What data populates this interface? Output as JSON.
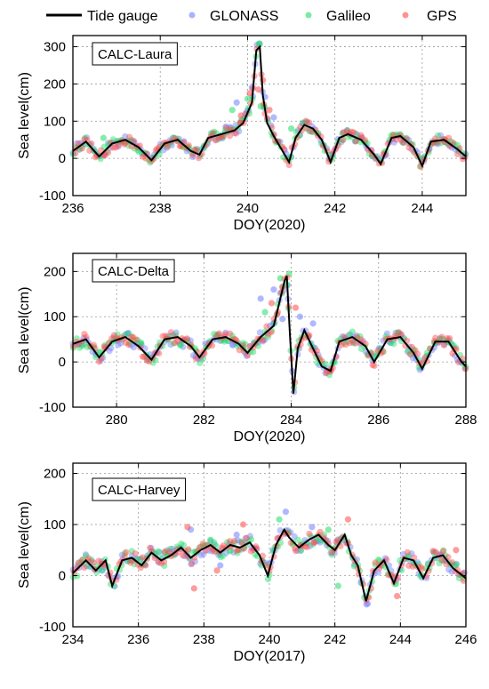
{
  "legend": {
    "entries": [
      {
        "label": "Tide gauge",
        "kind": "line",
        "color": "#000000"
      },
      {
        "label": "GLONASS",
        "kind": "dot",
        "color": "#6f7fff"
      },
      {
        "label": "Galileo",
        "kind": "dot",
        "color": "#22dd66"
      },
      {
        "label": "GPS",
        "kind": "dot",
        "color": "#ff4a4a"
      }
    ]
  },
  "chart_data": [
    {
      "type": "line",
      "box_label": "CALC-Laura",
      "xlabel": "DOY(2020)",
      "ylabel": "Sea level(cm)",
      "xlim": [
        236,
        245
      ],
      "ylim": [
        -100,
        330
      ],
      "xticks": [
        236,
        238,
        240,
        242,
        244
      ],
      "yticks": [
        -100,
        0,
        100,
        200,
        300
      ],
      "grid": true,
      "tide_gauge": [
        [
          236,
          20
        ],
        [
          236.3,
          45
        ],
        [
          236.6,
          5
        ],
        [
          236.9,
          40
        ],
        [
          237.2,
          50
        ],
        [
          237.5,
          30
        ],
        [
          237.8,
          -5
        ],
        [
          238.1,
          40
        ],
        [
          238.4,
          50
        ],
        [
          238.7,
          20
        ],
        [
          238.9,
          10
        ],
        [
          239.1,
          55
        ],
        [
          239.4,
          65
        ],
        [
          239.7,
          75
        ],
        [
          239.9,
          95
        ],
        [
          240.1,
          150
        ],
        [
          240.2,
          290
        ],
        [
          240.28,
          300
        ],
        [
          240.35,
          170
        ],
        [
          240.45,
          95
        ],
        [
          240.6,
          60
        ],
        [
          240.8,
          20
        ],
        [
          240.95,
          -10
        ],
        [
          241.1,
          55
        ],
        [
          241.3,
          90
        ],
        [
          241.5,
          80
        ],
        [
          241.7,
          50
        ],
        [
          241.9,
          -10
        ],
        [
          242.1,
          55
        ],
        [
          242.3,
          65
        ],
        [
          242.6,
          50
        ],
        [
          242.9,
          10
        ],
        [
          243.05,
          -15
        ],
        [
          243.3,
          55
        ],
        [
          243.5,
          60
        ],
        [
          243.8,
          30
        ],
        [
          244.0,
          -20
        ],
        [
          244.2,
          45
        ],
        [
          244.5,
          50
        ],
        [
          244.8,
          25
        ],
        [
          245,
          5
        ]
      ],
      "glonass": [
        [
          239.75,
          150
        ],
        [
          239.95,
          120
        ],
        [
          240.1,
          190
        ],
        [
          240.4,
          165
        ],
        [
          239.5,
          85
        ],
        [
          240.6,
          110
        ]
      ],
      "galileo": [
        [
          239.65,
          130
        ],
        [
          240.0,
          160
        ],
        [
          240.3,
          140
        ],
        [
          236.7,
          55
        ],
        [
          241.0,
          80
        ]
      ],
      "gps": [
        [
          239.85,
          115
        ],
        [
          240.05,
          175
        ],
        [
          240.35,
          210
        ],
        [
          240.5,
          130
        ],
        [
          240.25,
          185
        ]
      ]
    },
    {
      "type": "line",
      "box_label": "CALC-Delta",
      "xlabel": "DOY(2020)",
      "ylabel": "Sea level(cm)",
      "xlim": [
        279,
        288
      ],
      "ylim": [
        -100,
        240
      ],
      "xticks": [
        280,
        282,
        284,
        286,
        288
      ],
      "yticks": [
        -100,
        0,
        100,
        200
      ],
      "grid": true,
      "tide_gauge": [
        [
          279,
          40
        ],
        [
          279.3,
          50
        ],
        [
          279.6,
          10
        ],
        [
          279.9,
          45
        ],
        [
          280.2,
          55
        ],
        [
          280.5,
          35
        ],
        [
          280.8,
          5
        ],
        [
          281.1,
          50
        ],
        [
          281.4,
          55
        ],
        [
          281.7,
          35
        ],
        [
          281.9,
          10
        ],
        [
          282.2,
          50
        ],
        [
          282.5,
          55
        ],
        [
          282.8,
          40
        ],
        [
          283.0,
          20
        ],
        [
          283.3,
          55
        ],
        [
          283.6,
          80
        ],
        [
          283.85,
          180
        ],
        [
          283.9,
          190
        ],
        [
          283.97,
          60
        ],
        [
          284.05,
          -70
        ],
        [
          284.15,
          30
        ],
        [
          284.3,
          70
        ],
        [
          284.5,
          30
        ],
        [
          284.7,
          -10
        ],
        [
          284.9,
          -20
        ],
        [
          285.1,
          45
        ],
        [
          285.4,
          55
        ],
        [
          285.7,
          35
        ],
        [
          285.9,
          0
        ],
        [
          286.2,
          50
        ],
        [
          286.5,
          55
        ],
        [
          286.8,
          20
        ],
        [
          287.0,
          -15
        ],
        [
          287.3,
          45
        ],
        [
          287.6,
          45
        ],
        [
          287.9,
          0
        ],
        [
          288,
          -10
        ]
      ],
      "glonass": [
        [
          283.3,
          140
        ],
        [
          283.6,
          160
        ],
        [
          284.2,
          100
        ],
        [
          283.8,
          95
        ],
        [
          284.5,
          85
        ]
      ],
      "galileo": [
        [
          283.75,
          185
        ],
        [
          283.95,
          195
        ],
        [
          283.4,
          110
        ],
        [
          282.9,
          30
        ]
      ],
      "gps": [
        [
          283.8,
          165
        ],
        [
          284.1,
          120
        ],
        [
          283.55,
          130
        ],
        [
          284.9,
          -20
        ]
      ]
    },
    {
      "type": "line",
      "box_label": "CALC-Harvey",
      "xlabel": "DOY(2017)",
      "ylabel": "Sea level(cm)",
      "xlim": [
        234,
        246
      ],
      "ylim": [
        -100,
        220
      ],
      "xticks": [
        234,
        236,
        238,
        240,
        242,
        244,
        246
      ],
      "yticks": [
        -100,
        0,
        100,
        200
      ],
      "grid": true,
      "tide_gauge": [
        [
          234,
          5
        ],
        [
          234.4,
          30
        ],
        [
          234.7,
          10
        ],
        [
          235.0,
          30
        ],
        [
          235.2,
          -20
        ],
        [
          235.5,
          30
        ],
        [
          235.8,
          35
        ],
        [
          236.1,
          20
        ],
        [
          236.4,
          45
        ],
        [
          236.7,
          30
        ],
        [
          237.0,
          40
        ],
        [
          237.3,
          55
        ],
        [
          237.6,
          35
        ],
        [
          237.9,
          50
        ],
        [
          238.2,
          60
        ],
        [
          238.5,
          45
        ],
        [
          238.8,
          60
        ],
        [
          239.1,
          55
        ],
        [
          239.4,
          65
        ],
        [
          239.7,
          40
        ],
        [
          239.95,
          0
        ],
        [
          240.2,
          60
        ],
        [
          240.45,
          90
        ],
        [
          240.6,
          75
        ],
        [
          240.9,
          55
        ],
        [
          241.2,
          70
        ],
        [
          241.5,
          80
        ],
        [
          241.8,
          60
        ],
        [
          242.0,
          50
        ],
        [
          242.3,
          80
        ],
        [
          242.5,
          40
        ],
        [
          242.7,
          20
        ],
        [
          242.95,
          -50
        ],
        [
          243.2,
          10
        ],
        [
          243.5,
          30
        ],
        [
          243.8,
          -15
        ],
        [
          244.1,
          35
        ],
        [
          244.4,
          30
        ],
        [
          244.7,
          -5
        ],
        [
          245.0,
          35
        ],
        [
          245.3,
          40
        ],
        [
          245.6,
          15
        ],
        [
          246,
          -5
        ]
      ],
      "glonass": [
        [
          240.5,
          125
        ],
        [
          239.0,
          80
        ],
        [
          241.3,
          95
        ],
        [
          237.6,
          90
        ],
        [
          238.5,
          20
        ],
        [
          243.0,
          -55
        ]
      ],
      "galileo": [
        [
          240.3,
          110
        ],
        [
          241.8,
          90
        ],
        [
          242.1,
          -20
        ],
        [
          238.2,
          70
        ],
        [
          236.8,
          45
        ]
      ],
      "gps": [
        [
          237.5,
          95
        ],
        [
          237.7,
          -25
        ],
        [
          238.4,
          10
        ],
        [
          239.2,
          100
        ],
        [
          242.4,
          110
        ],
        [
          243.9,
          -40
        ],
        [
          245.7,
          50
        ]
      ]
    }
  ]
}
